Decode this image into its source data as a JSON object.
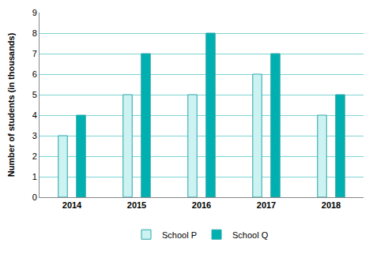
{
  "chart_data": {
    "type": "bar",
    "y_label": "Number of students (in thousands)",
    "categories": [
      "2014",
      "2015",
      "2016",
      "2017",
      "2018"
    ],
    "series": [
      {
        "name": "School P",
        "color": "#ccf2f2",
        "values": [
          3,
          5,
          5,
          6,
          4
        ]
      },
      {
        "name": "School Q",
        "color": "#00b0b0",
        "values": [
          4,
          7,
          8,
          7,
          5
        ]
      }
    ],
    "ylim": [
      0,
      9
    ],
    "yticks": [
      0,
      1,
      2,
      3,
      4,
      5,
      6,
      7,
      8,
      9
    ],
    "grid": true,
    "legend": "bottom"
  }
}
